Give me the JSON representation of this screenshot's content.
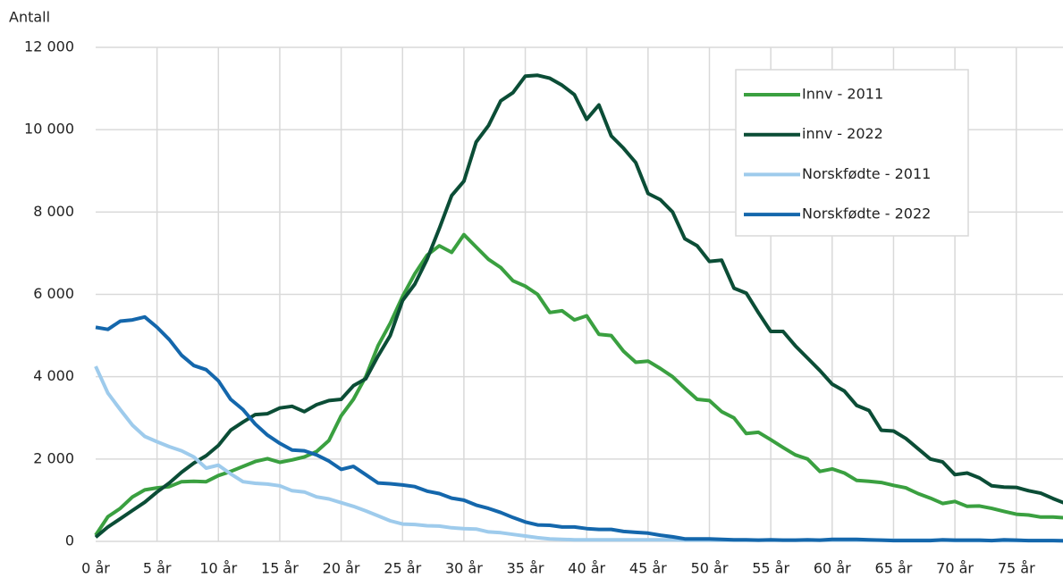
{
  "chart_data": {
    "type": "line",
    "ylabel": "Antall",
    "categories": [
      "0 år",
      null,
      null,
      null,
      null,
      "5 år",
      null,
      null,
      null,
      null,
      "10 år",
      null,
      null,
      null,
      null,
      "15 år",
      null,
      null,
      null,
      null,
      "20 år",
      null,
      null,
      null,
      null,
      "25 år",
      null,
      null,
      null,
      null,
      "30 år",
      null,
      null,
      null,
      null,
      "35 år",
      null,
      null,
      null,
      null,
      "40 år",
      null,
      null,
      null,
      null,
      "45 år",
      null,
      null,
      null,
      null,
      "50 år",
      null,
      null,
      null,
      null,
      "55 år",
      null,
      null,
      null,
      null,
      "60 år",
      null,
      null,
      null,
      null,
      "65 år",
      null,
      null,
      null,
      null,
      "70 år",
      null,
      null,
      null,
      null,
      "75 år",
      null,
      null,
      null,
      null
    ],
    "series": [
      {
        "name": "Innv - 2011",
        "color": "#3aa040",
        "values": [
          150,
          600,
          800,
          1080,
          1250,
          1300,
          1330,
          1450,
          1460,
          1450,
          1600,
          1700,
          1820,
          1940,
          2010,
          1920,
          1980,
          2050,
          2180,
          2450,
          3050,
          3450,
          4000,
          4750,
          5300,
          5950,
          6500,
          6950,
          7180,
          7020,
          7450,
          7150,
          6850,
          6650,
          6330,
          6200,
          6000,
          5560,
          5600,
          5380,
          5480,
          5030,
          5000,
          4620,
          4350,
          4380,
          4200,
          4000,
          3720,
          3450,
          3420,
          3150,
          3000,
          2620,
          2650,
          2470,
          2280,
          2100,
          2000,
          1700,
          1760,
          1660,
          1480,
          1460,
          1430,
          1360,
          1300,
          1160,
          1050,
          920,
          970,
          850,
          860,
          800,
          730,
          660,
          640,
          590,
          590,
          570
        ]
      },
      {
        "name": "innv - 2022",
        "color": "#0b4d36",
        "values": [
          100,
          350,
          550,
          750,
          950,
          1200,
          1420,
          1680,
          1900,
          2080,
          2330,
          2700,
          2900,
          3080,
          3100,
          3240,
          3280,
          3150,
          3320,
          3420,
          3450,
          3780,
          3950,
          4500,
          5000,
          5850,
          6250,
          6850,
          7600,
          8400,
          8750,
          9700,
          10100,
          10700,
          10900,
          11300,
          11320,
          11250,
          11080,
          10850,
          10250,
          10600,
          9850,
          9550,
          9200,
          8450,
          8300,
          8000,
          7350,
          7180,
          6800,
          6830,
          6150,
          6030,
          5550,
          5100,
          5100,
          4750,
          4450,
          4150,
          3820,
          3650,
          3300,
          3180,
          2700,
          2680,
          2500,
          2250,
          2000,
          1930,
          1620,
          1660,
          1540,
          1350,
          1320,
          1310,
          1230,
          1170,
          1040,
          920
        ]
      },
      {
        "name": "Norskfødte - 2011",
        "color": "#9ecbec",
        "values": [
          4250,
          3600,
          3200,
          2820,
          2550,
          2420,
          2300,
          2200,
          2050,
          1780,
          1850,
          1640,
          1450,
          1410,
          1390,
          1350,
          1230,
          1200,
          1080,
          1030,
          940,
          850,
          740,
          620,
          500,
          420,
          410,
          380,
          370,
          330,
          310,
          300,
          230,
          210,
          170,
          130,
          90,
          60,
          50,
          40,
          40,
          40,
          40,
          40,
          40,
          40,
          40,
          40,
          30,
          30,
          30,
          30,
          30,
          30,
          30,
          30,
          30,
          30,
          30,
          30,
          30,
          30,
          30,
          30,
          30,
          30,
          30,
          30,
          30,
          30,
          20,
          20,
          20,
          20,
          20,
          20,
          20,
          20,
          20,
          20
        ]
      },
      {
        "name": "Norskfødte - 2022",
        "color": "#1467ac",
        "values": [
          5200,
          5150,
          5350,
          5380,
          5450,
          5200,
          4900,
          4520,
          4270,
          4170,
          3900,
          3450,
          3200,
          2850,
          2580,
          2380,
          2220,
          2200,
          2100,
          1950,
          1750,
          1820,
          1620,
          1420,
          1400,
          1370,
          1330,
          1220,
          1160,
          1050,
          1000,
          880,
          800,
          700,
          580,
          470,
          400,
          390,
          350,
          350,
          310,
          290,
          290,
          240,
          220,
          200,
          150,
          110,
          60,
          60,
          60,
          50,
          40,
          40,
          30,
          40,
          30,
          30,
          40,
          30,
          50,
          50,
          50,
          40,
          30,
          20,
          20,
          20,
          20,
          40,
          30,
          30,
          30,
          20,
          40,
          30,
          20,
          20,
          20,
          10
        ]
      }
    ],
    "ylim": [
      0,
      12000
    ],
    "yticks": [
      0,
      {
        "value": 2000,
        "label": "2 000"
      },
      {
        "value": 4000,
        "label": "4 000"
      },
      {
        "value": 6000,
        "label": "6 000"
      },
      {
        "value": 8000,
        "label": "8 000"
      },
      {
        "value": 10000,
        "label": "10 000"
      },
      {
        "value": 12000,
        "label": "12 000"
      }
    ],
    "grid": true,
    "legend": "upper right"
  }
}
